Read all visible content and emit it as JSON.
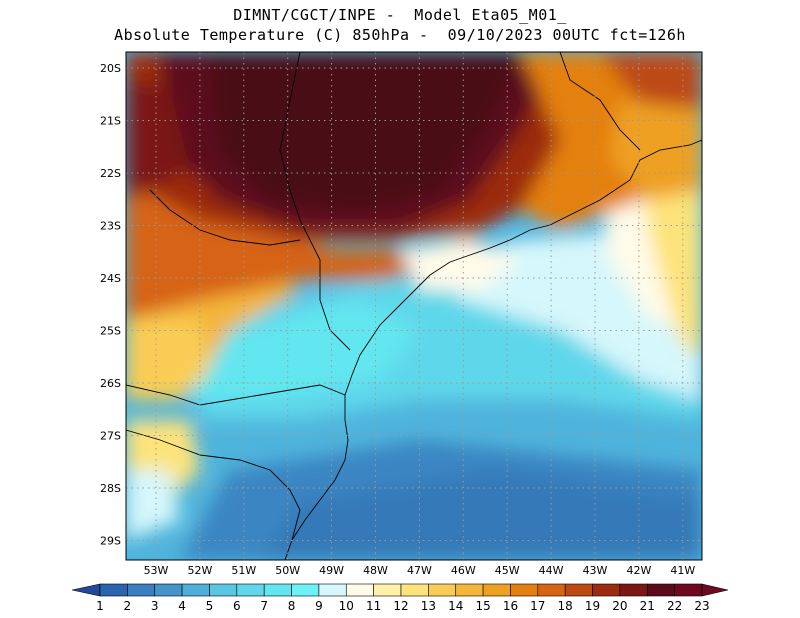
{
  "header": {
    "line1": "DIMNT/CGCT/INPE -  Model Eta05_M01_",
    "line2": "Absolute Temperature (C) 850hPa -  09/10/2023 00UTC fct=126h"
  },
  "map": {
    "lat_labels": [
      "20S",
      "21S",
      "22S",
      "23S",
      "24S",
      "25S",
      "26S",
      "27S",
      "28S",
      "29S"
    ],
    "lon_labels": [
      "53W",
      "52W",
      "51W",
      "50W",
      "49W",
      "48W",
      "47W",
      "46W",
      "45W",
      "44W",
      "43W",
      "42W",
      "41W"
    ],
    "grid": "dotted"
  },
  "colorbar": {
    "labels": [
      "1",
      "2",
      "3",
      "4",
      "5",
      "6",
      "7",
      "8",
      "9",
      "10",
      "11",
      "12",
      "13",
      "14",
      "15",
      "16",
      "17",
      "18",
      "19",
      "20",
      "21",
      "22",
      "23"
    ],
    "colors": [
      "#23479a",
      "#2a63ae",
      "#3a7fbf",
      "#4394c9",
      "#4eafd8",
      "#5ac6e2",
      "#5fd7ea",
      "#62e6f0",
      "#6cf2f6",
      "#d6f7fb",
      "#fffbe9",
      "#fff1a8",
      "#fde37c",
      "#f9cd55",
      "#f4b53a",
      "#eea020",
      "#e4800f",
      "#d66412",
      "#bd4a12",
      "#9c2c0f",
      "#7c1714",
      "#5c0b1c",
      "#6e0a20"
    ]
  }
}
